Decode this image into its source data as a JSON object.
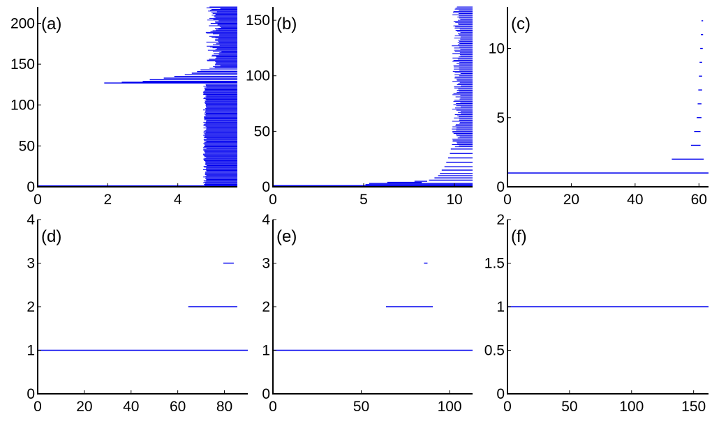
{
  "figure": {
    "line_color": "#0000ee"
  },
  "chart_data": [
    {
      "type": "barcode",
      "label": "(a)",
      "xlim": [
        0,
        5.7
      ],
      "ylim": [
        0,
        220
      ],
      "xticks": [
        "0",
        "2",
        "4"
      ],
      "xtick_values": [
        0,
        2,
        4
      ],
      "yticks": [
        "0",
        "50",
        "100",
        "150",
        "200"
      ],
      "ytick_values": [
        0,
        50,
        100,
        150,
        200
      ],
      "bars": [
        {
          "from": 0,
          "to": 5.7,
          "y": 1
        },
        {
          "band": true,
          "y_from": 2,
          "y_to": 125,
          "x_start_min": 4.72,
          "x_start_max": 4.82,
          "x_end": 5.7
        },
        {
          "from": 1.9,
          "to": 5.7,
          "y": 127
        },
        {
          "from": 2.4,
          "to": 5.7,
          "y": 128
        },
        {
          "from": 3.0,
          "to": 5.7,
          "y": 129
        },
        {
          "from": 3.2,
          "to": 5.7,
          "y": 131
        },
        {
          "from": 3.6,
          "to": 5.7,
          "y": 133
        },
        {
          "from": 3.9,
          "to": 5.7,
          "y": 135
        },
        {
          "from": 4.2,
          "to": 5.7,
          "y": 137
        },
        {
          "from": 4.4,
          "to": 5.7,
          "y": 139
        },
        {
          "from": 4.55,
          "to": 5.7,
          "y": 141
        },
        {
          "from": 4.65,
          "to": 5.7,
          "y": 143
        },
        {
          "band": true,
          "y_from": 145,
          "y_to": 220,
          "x_start_min": 4.78,
          "x_start_max": 5.25,
          "x_end": 5.7
        }
      ]
    },
    {
      "type": "barcode",
      "label": "(b)",
      "xlim": [
        0,
        11
      ],
      "ylim": [
        0,
        162
      ],
      "xticks": [
        "0",
        "5",
        "10"
      ],
      "xtick_values": [
        0,
        5,
        10
      ],
      "yticks": [
        "0",
        "50",
        "100",
        "150"
      ],
      "ytick_values": [
        0,
        50,
        100,
        150
      ],
      "bars": [
        {
          "from": 0,
          "to": 11,
          "y": 1
        },
        {
          "from": 5.1,
          "to": 11,
          "y": 2
        },
        {
          "from": 5.3,
          "to": 11,
          "y": 3
        },
        {
          "from": 6.3,
          "to": 8.2,
          "y": 4
        },
        {
          "from": 7.8,
          "to": 8.5,
          "y": 5
        },
        {
          "from": 8.6,
          "to": 11,
          "y": 6
        },
        {
          "from": 8.9,
          "to": 11,
          "y": 8
        },
        {
          "from": 9.1,
          "to": 11,
          "y": 10
        },
        {
          "from": 9.2,
          "to": 11,
          "y": 12
        },
        {
          "from": 9.3,
          "to": 11,
          "y": 15
        },
        {
          "from": 9.45,
          "to": 11,
          "y": 18
        },
        {
          "from": 9.55,
          "to": 11,
          "y": 22
        },
        {
          "from": 9.65,
          "to": 11,
          "y": 26
        },
        {
          "from": 9.75,
          "to": 11,
          "y": 30
        },
        {
          "from": 9.8,
          "to": 11,
          "y": 34
        },
        {
          "band": true,
          "y_from": 36,
          "y_to": 162,
          "x_start_min": 9.85,
          "x_start_max": 10.35,
          "x_end": 11
        }
      ]
    },
    {
      "type": "barcode",
      "label": "(c)",
      "xlim": [
        0,
        63
      ],
      "ylim": [
        0,
        13
      ],
      "xticks": [
        "0",
        "20",
        "40",
        "60"
      ],
      "xtick_values": [
        0,
        20,
        40,
        60
      ],
      "yticks": [
        "0",
        "5",
        "10"
      ],
      "ytick_values": [
        0,
        5,
        10
      ],
      "bars": [
        {
          "from": 0,
          "to": 63,
          "y": 1
        },
        {
          "from": 51.5,
          "to": 61.5,
          "y": 2
        },
        {
          "from": 57.5,
          "to": 60.5,
          "y": 3
        },
        {
          "from": 58.5,
          "to": 60.5,
          "y": 4
        },
        {
          "from": 59.3,
          "to": 60.8,
          "y": 5
        },
        {
          "from": 59.6,
          "to": 60.8,
          "y": 6
        },
        {
          "from": 59.8,
          "to": 61.0,
          "y": 7
        },
        {
          "from": 60.0,
          "to": 61.0,
          "y": 8
        },
        {
          "from": 60.2,
          "to": 61.0,
          "y": 9
        },
        {
          "from": 60.4,
          "to": 61.2,
          "y": 10
        },
        {
          "from": 60.6,
          "to": 61.3,
          "y": 11
        },
        {
          "from": 60.8,
          "to": 61.3,
          "y": 12
        }
      ]
    },
    {
      "type": "barcode",
      "label": "(d)",
      "xlim": [
        0,
        90
      ],
      "ylim": [
        0,
        4
      ],
      "xticks": [
        "0",
        "20",
        "40",
        "60",
        "80"
      ],
      "xtick_values": [
        0,
        20,
        40,
        60,
        80
      ],
      "yticks": [
        "0",
        "1",
        "2",
        "3",
        "4"
      ],
      "ytick_values": [
        0,
        1,
        2,
        3,
        4
      ],
      "bars": [
        {
          "from": 0,
          "to": 90,
          "y": 1
        },
        {
          "from": 64.5,
          "to": 85.5,
          "y": 2
        },
        {
          "from": 79.5,
          "to": 84,
          "y": 3
        }
      ]
    },
    {
      "type": "barcode",
      "label": "(e)",
      "xlim": [
        0,
        113
      ],
      "ylim": [
        0,
        4
      ],
      "xticks": [
        "0",
        "50",
        "100"
      ],
      "xtick_values": [
        0,
        50,
        100
      ],
      "yticks": [
        "0",
        "1",
        "2",
        "3",
        "4"
      ],
      "ytick_values": [
        0,
        1,
        2,
        3,
        4
      ],
      "bars": [
        {
          "from": 0,
          "to": 113,
          "y": 1
        },
        {
          "from": 64,
          "to": 90.5,
          "y": 2
        },
        {
          "from": 85.5,
          "to": 87.5,
          "y": 3
        }
      ]
    },
    {
      "type": "barcode",
      "label": "(f)",
      "xlim": [
        0,
        162
      ],
      "ylim": [
        0,
        2
      ],
      "xticks": [
        "0",
        "50",
        "100",
        "150"
      ],
      "xtick_values": [
        0,
        50,
        100,
        150
      ],
      "yticks": [
        "0",
        "0.5",
        "1",
        "1.5",
        "2"
      ],
      "ytick_values": [
        0,
        0.5,
        1,
        1.5,
        2
      ],
      "bars": [
        {
          "from": 0,
          "to": 162,
          "y": 1
        }
      ]
    }
  ]
}
